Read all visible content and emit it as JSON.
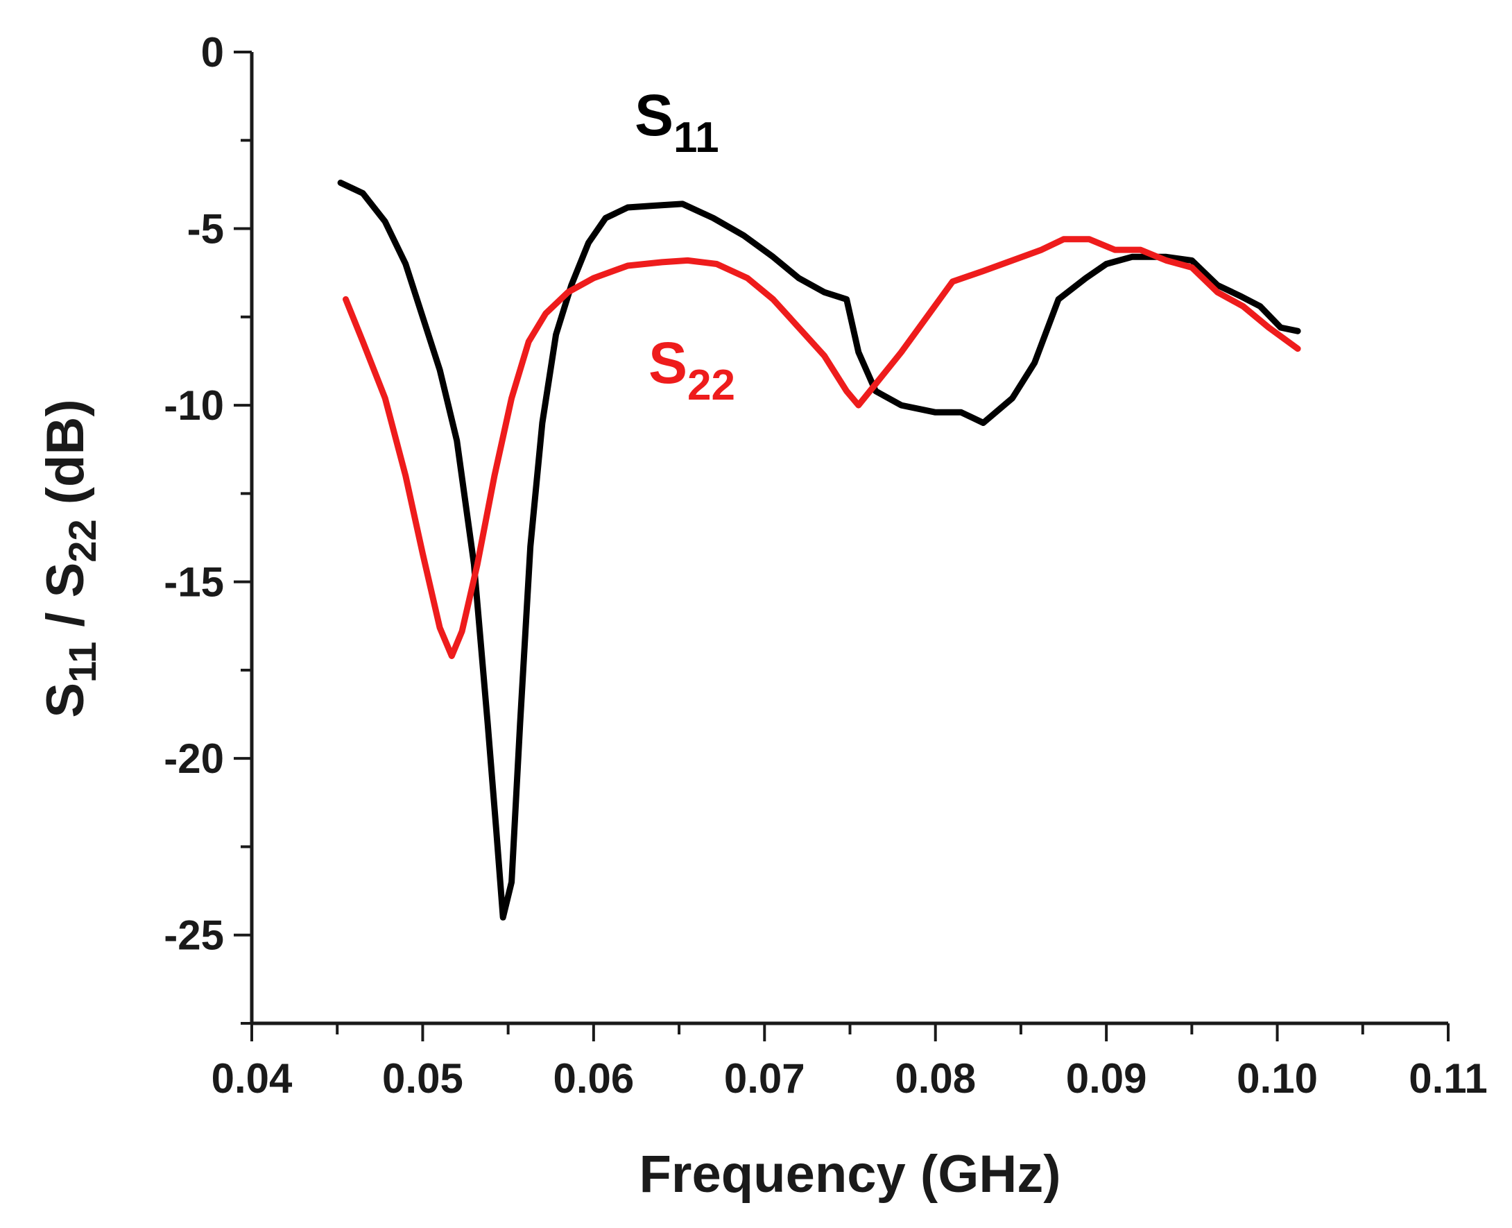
{
  "chart_data": {
    "type": "line",
    "xlabel": "Frequency (GHz)",
    "ylabel": {
      "main1": "S",
      "sub1": "11",
      "mid": " / S",
      "sub2": "22",
      "tail": " (dB)"
    },
    "xlim": [
      0.04,
      0.11
    ],
    "ylim": [
      -27.5,
      0
    ],
    "xticks": [
      "0.04",
      "0.05",
      "0.06",
      "0.07",
      "0.08",
      "0.09",
      "0.10",
      "0.11"
    ],
    "yticks": [
      "0",
      "-5",
      "-10",
      "-15",
      "-20",
      "-25"
    ],
    "grid": false,
    "series": [
      {
        "name": {
          "main": "S",
          "sub": "11"
        },
        "color": "#000000",
        "points": [
          [
            0.0452,
            -3.7
          ],
          [
            0.0465,
            -4.0
          ],
          [
            0.0478,
            -4.8
          ],
          [
            0.049,
            -6.0
          ],
          [
            0.05,
            -7.5
          ],
          [
            0.051,
            -9.0
          ],
          [
            0.052,
            -11.0
          ],
          [
            0.053,
            -14.5
          ],
          [
            0.0538,
            -19.0
          ],
          [
            0.0543,
            -22.0
          ],
          [
            0.0547,
            -24.5
          ],
          [
            0.0552,
            -23.5
          ],
          [
            0.0557,
            -19.0
          ],
          [
            0.0563,
            -14.0
          ],
          [
            0.057,
            -10.5
          ],
          [
            0.0578,
            -8.0
          ],
          [
            0.0587,
            -6.6
          ],
          [
            0.0597,
            -5.4
          ],
          [
            0.0607,
            -4.7
          ],
          [
            0.062,
            -4.4
          ],
          [
            0.0635,
            -4.35
          ],
          [
            0.0652,
            -4.3
          ],
          [
            0.067,
            -4.7
          ],
          [
            0.0688,
            -5.2
          ],
          [
            0.0705,
            -5.8
          ],
          [
            0.072,
            -6.4
          ],
          [
            0.0735,
            -6.8
          ],
          [
            0.0748,
            -7.0
          ],
          [
            0.0755,
            -8.5
          ],
          [
            0.0765,
            -9.6
          ],
          [
            0.078,
            -10.0
          ],
          [
            0.08,
            -10.2
          ],
          [
            0.0815,
            -10.2
          ],
          [
            0.0828,
            -10.5
          ],
          [
            0.0845,
            -9.8
          ],
          [
            0.0858,
            -8.8
          ],
          [
            0.0872,
            -7.0
          ],
          [
            0.0888,
            -6.4
          ],
          [
            0.09,
            -6.0
          ],
          [
            0.0915,
            -5.8
          ],
          [
            0.0935,
            -5.8
          ],
          [
            0.095,
            -5.9
          ],
          [
            0.0965,
            -6.6
          ],
          [
            0.0978,
            -6.9
          ],
          [
            0.099,
            -7.2
          ],
          [
            0.1002,
            -7.8
          ],
          [
            0.1012,
            -7.9
          ]
        ]
      },
      {
        "name": {
          "main": "S",
          "sub": "22"
        },
        "color": "#ee1c1c",
        "points": [
          [
            0.0455,
            -7.0
          ],
          [
            0.0465,
            -8.2
          ],
          [
            0.0478,
            -9.8
          ],
          [
            0.049,
            -12.0
          ],
          [
            0.05,
            -14.2
          ],
          [
            0.051,
            -16.3
          ],
          [
            0.0517,
            -17.1
          ],
          [
            0.0523,
            -16.4
          ],
          [
            0.0532,
            -14.5
          ],
          [
            0.0542,
            -12.0
          ],
          [
            0.0552,
            -9.8
          ],
          [
            0.0562,
            -8.2
          ],
          [
            0.0572,
            -7.4
          ],
          [
            0.0585,
            -6.8
          ],
          [
            0.06,
            -6.4
          ],
          [
            0.062,
            -6.05
          ],
          [
            0.064,
            -5.95
          ],
          [
            0.0655,
            -5.9
          ],
          [
            0.0672,
            -6.0
          ],
          [
            0.069,
            -6.4
          ],
          [
            0.0705,
            -7.0
          ],
          [
            0.072,
            -7.8
          ],
          [
            0.0735,
            -8.6
          ],
          [
            0.0748,
            -9.6
          ],
          [
            0.0755,
            -10.0
          ],
          [
            0.0765,
            -9.4
          ],
          [
            0.078,
            -8.5
          ],
          [
            0.0795,
            -7.5
          ],
          [
            0.081,
            -6.5
          ],
          [
            0.0828,
            -6.2
          ],
          [
            0.0845,
            -5.9
          ],
          [
            0.0862,
            -5.6
          ],
          [
            0.0875,
            -5.3
          ],
          [
            0.089,
            -5.3
          ],
          [
            0.0905,
            -5.6
          ],
          [
            0.092,
            -5.6
          ],
          [
            0.0935,
            -5.9
          ],
          [
            0.095,
            -6.1
          ],
          [
            0.0965,
            -6.8
          ],
          [
            0.098,
            -7.2
          ],
          [
            0.0995,
            -7.8
          ],
          [
            0.1012,
            -8.4
          ]
        ]
      }
    ]
  }
}
